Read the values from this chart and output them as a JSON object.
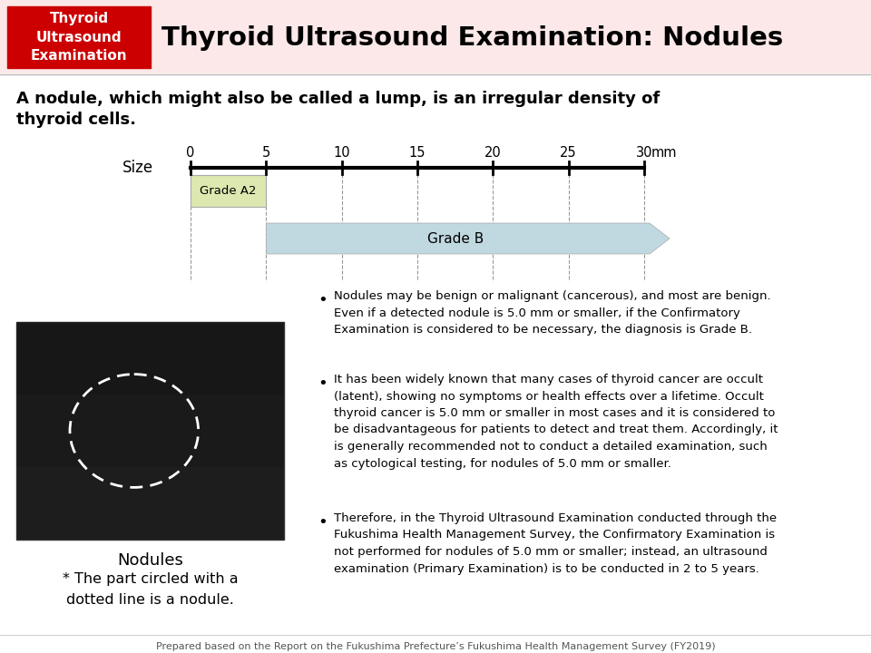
{
  "title": "Thyroid Ultrasound Examination: Nodules",
  "red_box_lines": [
    "Thyroid",
    "Ultrasound",
    "Examination"
  ],
  "subtitle_line1": "A nodule, which might also be called a lump, is an irregular density of",
  "subtitle_line2": "thyroid cells.",
  "size_label": "Size",
  "ruler_ticks": [
    0,
    5,
    10,
    15,
    20,
    25,
    30
  ],
  "ruler_unit": "mm",
  "grade_a2_label": "Grade A2",
  "grade_b_label": "Grade B",
  "grade_a2_color": "#dce8b0",
  "grade_b_color": "#c0d8e0",
  "bullet1": "Nodules may be benign or malignant (cancerous), and most are benign.\nEven if a detected nodule is 5.0 mm or smaller, if the Confirmatory\nExamination is considered to be necessary, the diagnosis is Grade B.",
  "bullet2": "It has been widely known that many cases of thyroid cancer are occult\n(latent), showing no symptoms or health effects over a lifetime. Occult\nthyroid cancer is 5.0 mm or smaller in most cases and it is considered to\nbe disadvantageous for patients to detect and treat them. Accordingly, it\nis generally recommended not to conduct a detailed examination, such\nas cytological testing, for nodules of 5.0 mm or smaller.",
  "bullet3": "Therefore, in the Thyroid Ultrasound Examination conducted through the\nFukushima Health Management Survey, the Confirmatory Examination is\nnot performed for nodules of 5.0 mm or smaller; instead, an ultrasound\nexamination (Primary Examination) is to be conducted in 2 to 5 years.",
  "image_caption1": "Nodules",
  "image_caption2": "* The part circled with a\ndotted line is a nodule.",
  "footer": "Prepared based on the Report on the Fukushima Prefecture’s Fukushima Health Management Survey (FY2019)",
  "header_bg": "#fce8e8",
  "red_box_color": "#cc0000",
  "white_color": "#ffffff",
  "black_color": "#000000",
  "figw": 9.6,
  "figh": 7.2,
  "dpi": 100
}
